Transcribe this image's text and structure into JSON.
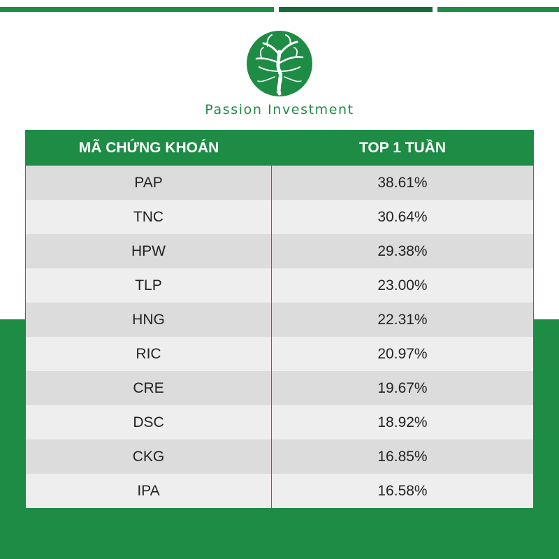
{
  "brand": {
    "name": "Passion Investment",
    "logo_icon": "tree-icon",
    "color": "#1e8c45"
  },
  "chart_data": {
    "type": "table",
    "columns": [
      "MÃ CHỨNG KHOÁN",
      "TOP 1 TUẦN"
    ],
    "rows": [
      [
        "PAP",
        "38.61%"
      ],
      [
        "TNC",
        "30.64%"
      ],
      [
        "HPW",
        "29.38%"
      ],
      [
        "TLP",
        "23.00%"
      ],
      [
        "HNG",
        "22.31%"
      ],
      [
        "RIC",
        "20.97%"
      ],
      [
        "CRE",
        "19.67%"
      ],
      [
        "DSC",
        "18.92%"
      ],
      [
        "CKG",
        "16.85%"
      ],
      [
        "IPA",
        "16.58%"
      ]
    ],
    "values": [
      38.61,
      30.64,
      29.38,
      23.0,
      22.31,
      20.97,
      19.67,
      18.92,
      16.85,
      16.58
    ]
  }
}
